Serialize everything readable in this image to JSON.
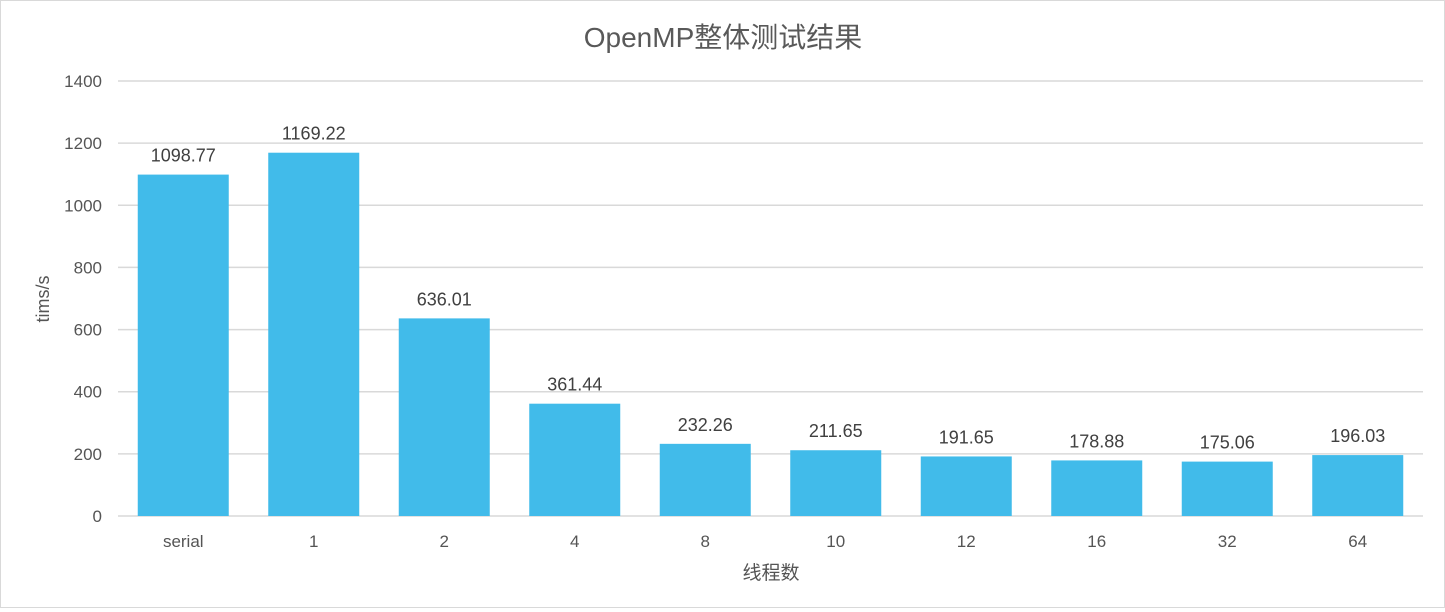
{
  "chart_data": {
    "type": "bar",
    "title": "OpenMP整体测试结果",
    "xlabel": "线程数",
    "ylabel": "tims/s",
    "categories": [
      "serial",
      "1",
      "2",
      "4",
      "8",
      "10",
      "12",
      "16",
      "32",
      "64"
    ],
    "values": [
      1098.77,
      1169.22,
      636.01,
      361.44,
      232.26,
      211.65,
      191.65,
      178.88,
      175.06,
      196.03
    ],
    "data_labels": [
      "1098.77",
      "1169.22",
      "636.01",
      "361.44",
      "232.26",
      "211.65",
      "191.65",
      "178.88",
      "175.06",
      "196.03"
    ],
    "ylim": [
      0,
      1400
    ],
    "yticks": [
      0,
      200,
      400,
      600,
      800,
      1000,
      1200,
      1400
    ],
    "grid": true,
    "legend": "none",
    "colors": {
      "bar": "#41bbea",
      "grid": "#d9d9d9",
      "axis_text": "#555555",
      "title": "#595959"
    }
  }
}
